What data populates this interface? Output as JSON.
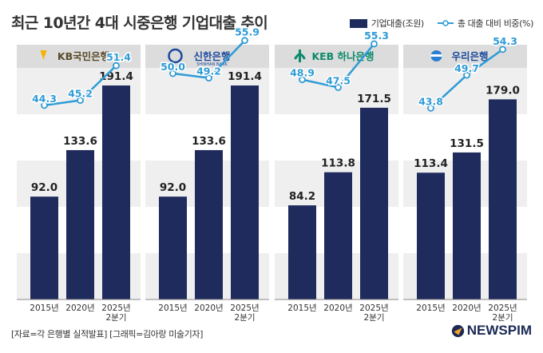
{
  "title": "최근 10년간 4대 시중은행 기업대출 추이",
  "legend": {
    "bar_label": "기업대출(조원)",
    "line_label": "총 대출 대비 비중(%)"
  },
  "colors": {
    "bar": "#1f2b5c",
    "line": "#2e9bd6",
    "header_bg": "#dcdcdc",
    "band_bg": "#efefef"
  },
  "chart_data": [
    {
      "type": "bar",
      "bank": "KB국민은행",
      "categories": [
        "2015년",
        "2020년",
        "2025년 2분기"
      ],
      "series": [
        {
          "name": "기업대출(조원)",
          "values": [
            92.0,
            133.6,
            191.4
          ]
        },
        {
          "name": "총 대출 대비 비중(%)",
          "type": "line",
          "values": [
            44.3,
            45.2,
            51.4
          ]
        }
      ]
    },
    {
      "type": "bar",
      "bank": "신한은행",
      "bank_sub": "SHINHAN BANK",
      "categories": [
        "2015년",
        "2020년",
        "2025년 2분기"
      ],
      "series": [
        {
          "name": "기업대출(조원)",
          "values": [
            92.0,
            133.6,
            191.4
          ]
        },
        {
          "name": "총 대출 대비 비중(%)",
          "type": "line",
          "values": [
            50.0,
            49.2,
            55.9
          ]
        }
      ]
    },
    {
      "type": "bar",
      "bank": "KEB 하나은행",
      "categories": [
        "2015년",
        "2020년",
        "2025년 2분기"
      ],
      "series": [
        {
          "name": "기업대출(조원)",
          "values": [
            84.2,
            113.8,
            171.5
          ]
        },
        {
          "name": "총 대출 대비 비중(%)",
          "type": "line",
          "values": [
            48.9,
            47.5,
            55.3
          ]
        }
      ]
    },
    {
      "type": "bar",
      "bank": "우리은행",
      "categories": [
        "2015년",
        "2020년",
        "2025년 2분기"
      ],
      "series": [
        {
          "name": "기업대출(조원)",
          "values": [
            113.4,
            131.5,
            179.0
          ]
        },
        {
          "name": "총 대출 대비 비중(%)",
          "type": "line",
          "values": [
            43.8,
            49.7,
            54.3
          ]
        }
      ]
    }
  ],
  "footer": {
    "source": "[자료=각 은행별 실적발표] [그래픽=김아랑 미술기자]",
    "logo_text": "NEWSPIM"
  }
}
